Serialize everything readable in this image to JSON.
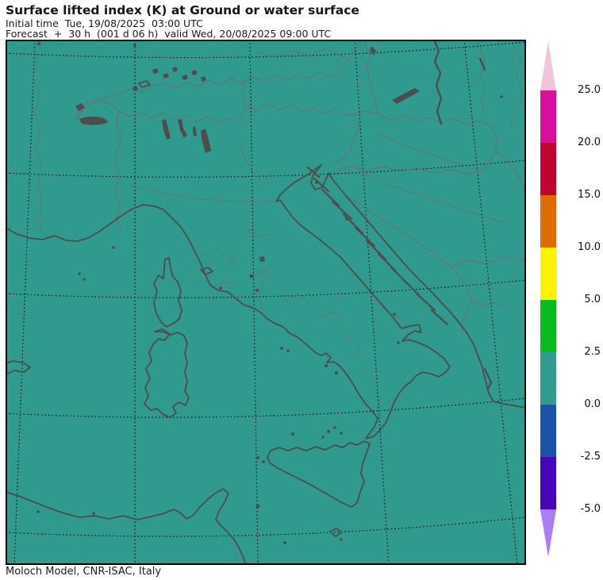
{
  "header": {
    "title": "Surface lifted index (K) at Ground or water surface",
    "initial_time": "Initial time  Tue, 19/08/2025  03:00 UTC",
    "forecast": "Forecast  +  30 h  (001 d 06 h)  valid Wed, 20/08/2025 09:00 UTC"
  },
  "footer": {
    "credit": "Moloch Model, CNR-ISAC, Italy"
  },
  "map": {
    "sea_fill": "#2f9a8d",
    "coast_color": "#4d4d4d",
    "border_color": "#6e6e6e",
    "grid_color": "#0b0b0b",
    "frame_color": "#000000"
  },
  "colorbar": {
    "up_arrow_color": "#efc6da",
    "down_arrow_color": "#aa7dfb",
    "segments": [
      {
        "label": "25.0",
        "color": "#d8109e"
      },
      {
        "label": "20.0",
        "color": "#bf0431"
      },
      {
        "label": "15.0",
        "color": "#de6c04"
      },
      {
        "label": "10.0",
        "color": "#fbf303"
      },
      {
        "label": "5.0",
        "color": "#09bb1e"
      },
      {
        "label": "2.5",
        "color": "#339a8e"
      },
      {
        "label": "0.0",
        "color": "#1c53a7"
      },
      {
        "label": "-2.5",
        "color": "#4507b9"
      }
    ],
    "bottom_label": "-5.0"
  }
}
